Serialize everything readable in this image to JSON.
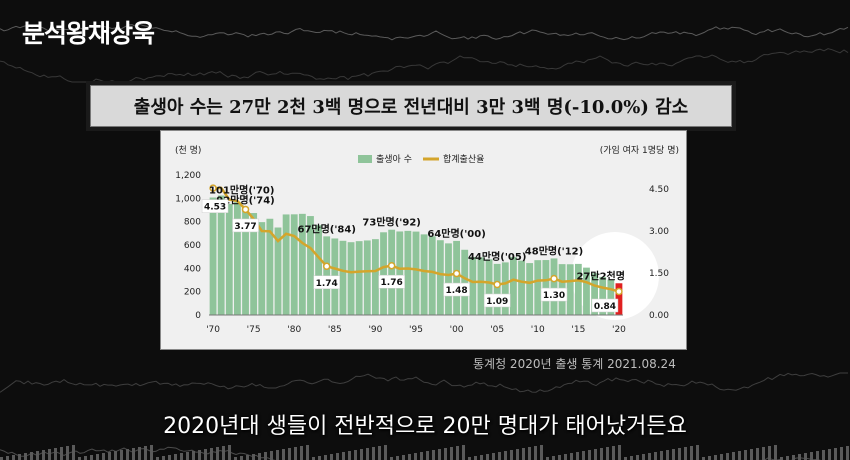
{
  "channel": {
    "name": "분석왕채상욱"
  },
  "headline": "출생아 수는 27만 2천 3백 명으로 전년대비 3만 3백 명(-10.0%) 감소",
  "source": "통계청 2020년 출생 통계 2021.08.24",
  "subtitle": "2020년대 생들이 전반적으로 20만 명대가 태어났거든요",
  "colors": {
    "bar": "#8fc49a",
    "bar_highlight": "#e02020",
    "line": "#d4a52b",
    "highlight_circle": "#ffffff"
  },
  "chart_data": {
    "type": "bar",
    "left_unit": "(천 명)",
    "right_unit": "(가임 여자 1명당 명)",
    "ylim": [
      0,
      1200
    ],
    "yticks": [
      "0",
      "200",
      "400",
      "600",
      "800",
      "1,000",
      "1,200"
    ],
    "y2lim": [
      0,
      5.0
    ],
    "y2ticks": [
      "0.00",
      "1.50",
      "3.00",
      "4.50"
    ],
    "xticks": [
      "'70",
      "'75",
      "'80",
      "'85",
      "'90",
      "'95",
      "'00",
      "'05",
      "'10",
      "'15",
      "'20"
    ],
    "years": [
      1970,
      1971,
      1972,
      1973,
      1974,
      1975,
      1976,
      1977,
      1978,
      1979,
      1980,
      1981,
      1982,
      1983,
      1984,
      1985,
      1986,
      1987,
      1988,
      1989,
      1990,
      1991,
      1992,
      1993,
      1994,
      1995,
      1996,
      1997,
      1998,
      1999,
      2000,
      2001,
      2002,
      2003,
      2004,
      2005,
      2006,
      2007,
      2008,
      2009,
      2010,
      2011,
      2012,
      2013,
      2014,
      2015,
      2016,
      2017,
      2018,
      2019,
      2020
    ],
    "series": [
      {
        "name": "출생아 수",
        "type": "bar",
        "values": [
          1007,
          1024,
          952,
          967,
          922,
          874,
          796,
          825,
          750,
          862,
          863,
          867,
          848,
          770,
          674,
          656,
          636,
          624,
          633,
          639,
          650,
          709,
          731,
          716,
          721,
          715,
          691,
          675,
          641,
          614,
          635,
          559,
          497,
          495,
          477,
          438,
          451,
          497,
          466,
          445,
          470,
          471,
          485,
          436,
          435,
          438,
          406,
          358,
          327,
          303,
          272
        ]
      },
      {
        "name": "합계출산율",
        "type": "line",
        "values": [
          4.53,
          4.54,
          4.12,
          4.07,
          3.77,
          3.43,
          3.0,
          2.99,
          2.64,
          2.9,
          2.82,
          2.57,
          2.39,
          2.06,
          1.74,
          1.66,
          1.58,
          1.53,
          1.55,
          1.56,
          1.57,
          1.71,
          1.76,
          1.65,
          1.66,
          1.63,
          1.57,
          1.54,
          1.46,
          1.43,
          1.48,
          1.31,
          1.18,
          1.19,
          1.16,
          1.09,
          1.13,
          1.26,
          1.19,
          1.15,
          1.23,
          1.24,
          1.3,
          1.19,
          1.21,
          1.24,
          1.17,
          1.05,
          0.98,
          0.92,
          0.84
        ]
      }
    ],
    "bar_labels": [
      {
        "year": 1970,
        "text": "101만명('70)"
      },
      {
        "year": 1974,
        "text": "92만명('74)"
      },
      {
        "year": 1984,
        "text": "67만명('84)"
      },
      {
        "year": 1992,
        "text": "73만명('92)"
      },
      {
        "year": 2000,
        "text": "64만명('00)"
      },
      {
        "year": 2005,
        "text": "44만명('05)"
      },
      {
        "year": 2012,
        "text": "48만명('12)"
      },
      {
        "year": 2020,
        "text": "27만2천명"
      }
    ],
    "rate_labels": [
      {
        "year": 1970,
        "text": "4.53"
      },
      {
        "year": 1974,
        "text": "3.77"
      },
      {
        "year": 1984,
        "text": "1.74"
      },
      {
        "year": 1992,
        "text": "1.76"
      },
      {
        "year": 2000,
        "text": "1.48"
      },
      {
        "year": 2005,
        "text": "1.09"
      },
      {
        "year": 2012,
        "text": "1.30"
      },
      {
        "year": 2020,
        "text": "0.84"
      }
    ],
    "highlight_year": 2020
  }
}
